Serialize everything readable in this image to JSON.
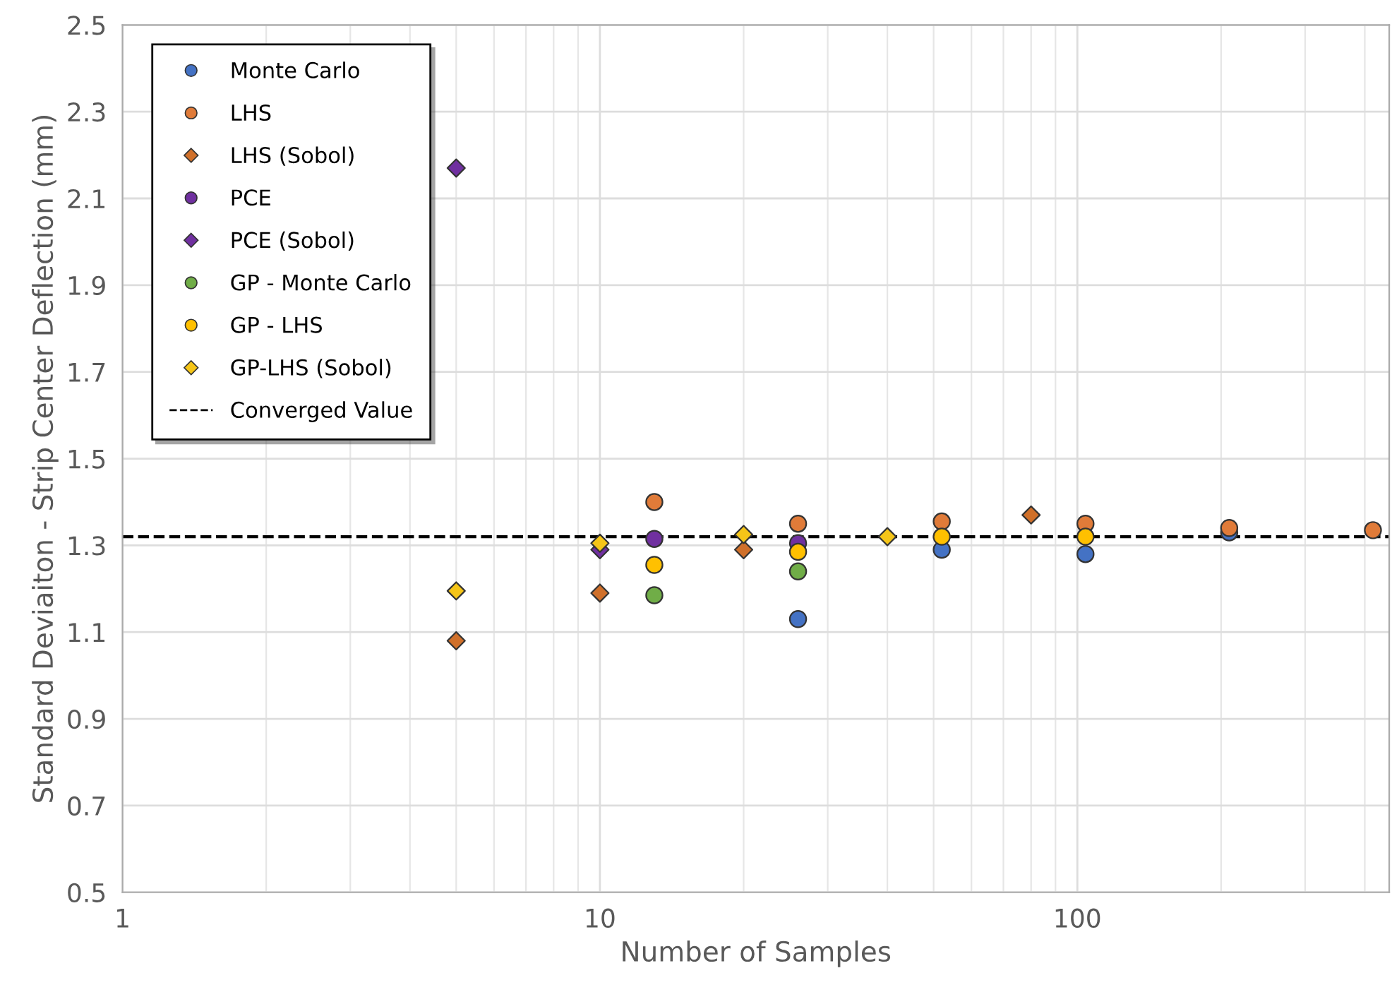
{
  "chart_data": {
    "type": "scatter",
    "xlabel": "Number of Samples",
    "ylabel": "Standard Deviaiton - Strip Center Deflection (mm)",
    "log": "x",
    "xlim": [
      1,
      450
    ],
    "xticks": [
      1,
      10,
      100
    ],
    "ylim": [
      0.5,
      2.5
    ],
    "yticks": [
      0.5,
      0.7,
      0.9,
      1.1,
      1.3,
      1.5,
      1.7,
      1.9,
      2.1,
      2.3,
      2.5
    ],
    "grid": true,
    "legend": "top left",
    "series": [
      {
        "name": "Monte Carlo",
        "color": "#4472c4",
        "marker": "circle",
        "x": [
          26,
          52,
          104,
          208
        ],
        "values": [
          1.13,
          1.29,
          1.28,
          1.33
        ]
      },
      {
        "name": "LHS",
        "color": "#e07b39",
        "marker": "circle",
        "x": [
          13,
          26,
          52,
          104,
          208,
          416
        ],
        "values": [
          1.4,
          1.35,
          1.355,
          1.35,
          1.34,
          1.335
        ]
      },
      {
        "name": "LHS (Sobol)",
        "color": "#d0702a",
        "marker": "diamond",
        "x": [
          5,
          10,
          20,
          80
        ],
        "values": [
          1.08,
          1.19,
          1.29,
          1.37
        ]
      },
      {
        "name": "PCE",
        "color": "#7030a0",
        "marker": "circle",
        "x": [
          13,
          26
        ],
        "values": [
          1.315,
          1.305
        ]
      },
      {
        "name": "PCE (Sobol)",
        "color": "#7030a0",
        "marker": "diamond",
        "x": [
          5,
          10
        ],
        "values": [
          2.17,
          1.29
        ]
      },
      {
        "name": "GP - Monte Carlo",
        "color": "#70ad47",
        "marker": "circle",
        "x": [
          13,
          26
        ],
        "values": [
          1.185,
          1.24
        ]
      },
      {
        "name": "GP - LHS",
        "color": "#ffc000",
        "marker": "circle",
        "x": [
          13,
          26,
          52,
          104
        ],
        "values": [
          1.255,
          1.285,
          1.32,
          1.32
        ]
      },
      {
        "name": "GP-LHS (Sobol)",
        "color": "#f5c518",
        "marker": "diamond",
        "x": [
          5,
          10,
          20,
          40
        ],
        "values": [
          1.195,
          1.305,
          1.325,
          1.32
        ]
      }
    ],
    "ref_lines": [
      {
        "axis": "y",
        "value": 1.32,
        "label": "Converged Value",
        "color": "#000000",
        "line_style": "dashed"
      }
    ]
  }
}
